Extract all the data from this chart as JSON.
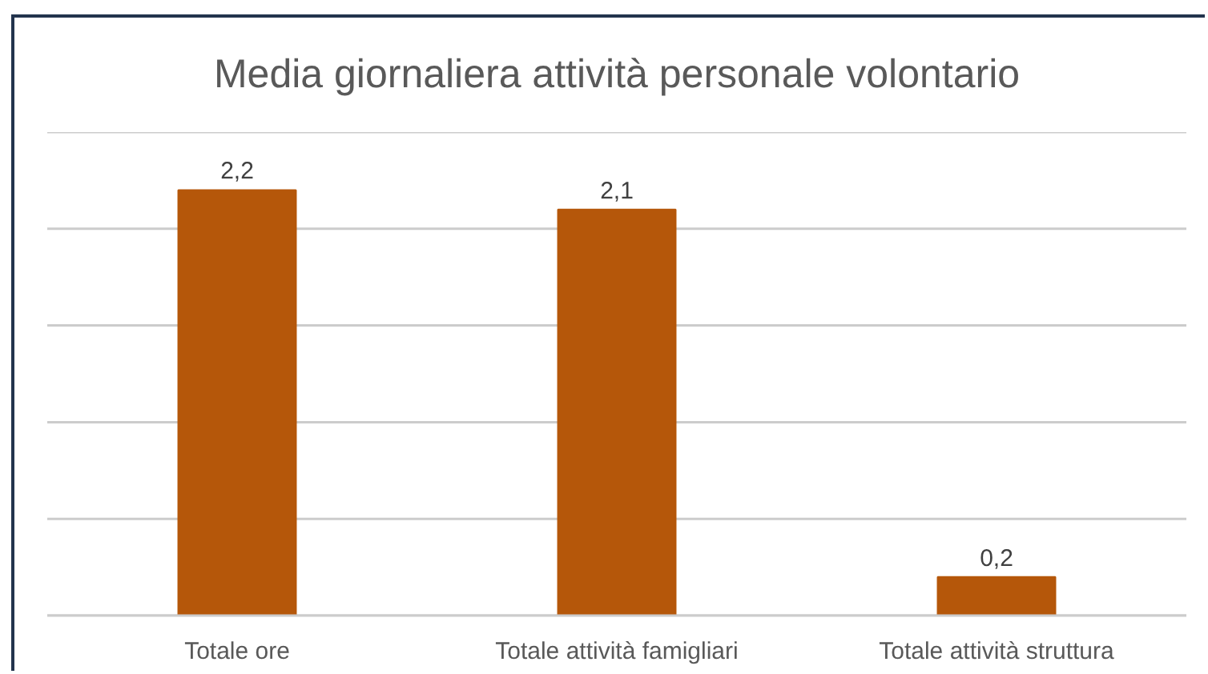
{
  "chart_data": {
    "type": "bar",
    "title": "Media giornaliera attività personale volontario",
    "categories": [
      "Totale ore",
      "Totale attività famigliari",
      "Totale attività struttura"
    ],
    "values": [
      2.2,
      2.1,
      0.2
    ],
    "value_labels": [
      "2,2",
      "2,1",
      "0,2"
    ],
    "color": "#b5570a",
    "ylim": [
      0,
      2.5
    ],
    "yticks": [
      {
        "value": 0,
        "label": null
      },
      {
        "value": 0.5,
        "label": null
      },
      {
        "value": 1,
        "label": null
      },
      {
        "value": 1.5,
        "label": null
      },
      {
        "value": 2,
        "label": null
      },
      {
        "value": 2.5,
        "label": null
      }
    ],
    "grid": "y",
    "tick_labels": "x"
  }
}
